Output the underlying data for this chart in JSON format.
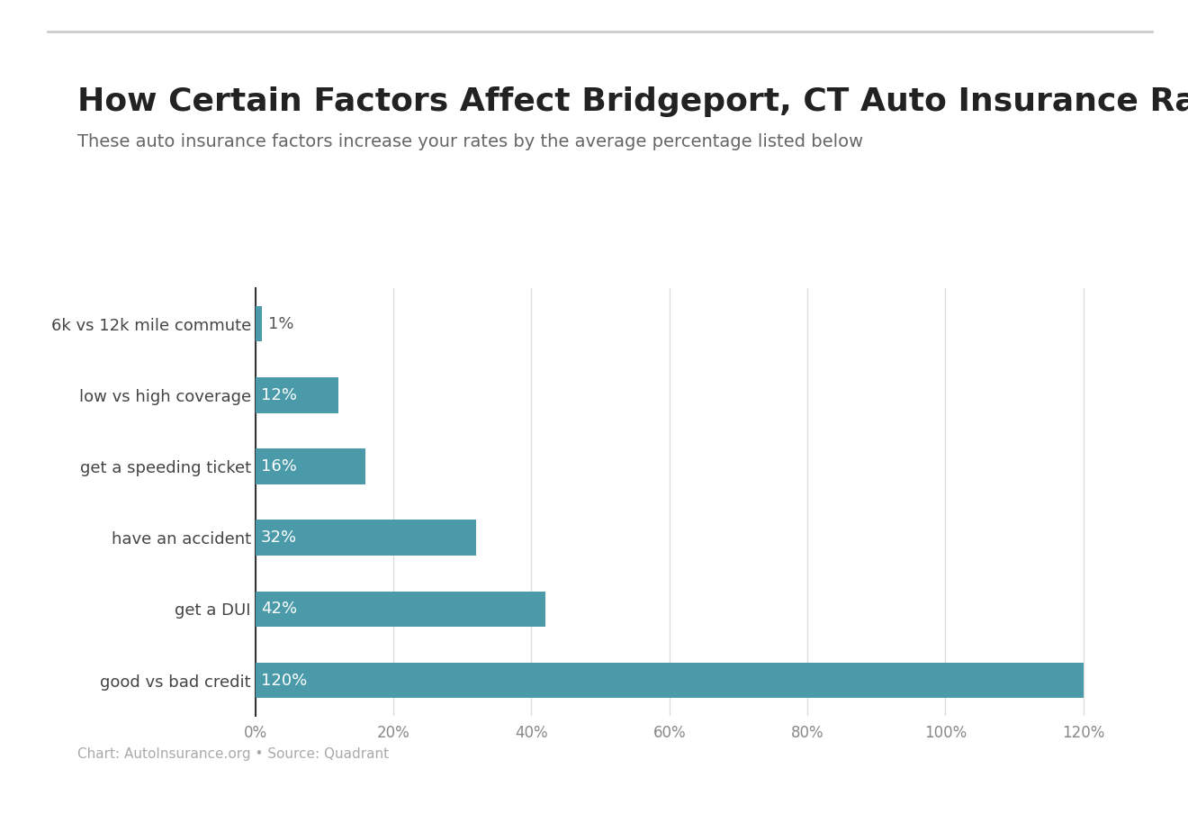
{
  "title": "How Certain Factors Affect Bridgeport, CT Auto Insurance Rates",
  "subtitle": "These auto insurance factors increase your rates by the average percentage listed below",
  "categories": [
    "good vs bad credit",
    "get a DUI",
    "have an accident",
    "get a speeding ticket",
    "low vs high coverage",
    "6k vs 12k mile commute"
  ],
  "values": [
    120,
    42,
    32,
    16,
    12,
    1
  ],
  "bar_color": "#4a9aaa",
  "label_color_inside": "#ffffff",
  "label_color_outside": "#555555",
  "background_color": "#ffffff",
  "top_line_color": "#cccccc",
  "grid_color": "#dddddd",
  "footer_text": "Chart: AutoInsurance.org • Source: Quadrant",
  "footer_color": "#aaaaaa",
  "title_color": "#222222",
  "subtitle_color": "#666666",
  "title_fontsize": 26,
  "subtitle_fontsize": 14,
  "label_fontsize": 13,
  "tick_fontsize": 12,
  "footer_fontsize": 11,
  "ytick_fontsize": 13,
  "xlim": [
    0,
    130
  ],
  "bar_height": 0.5
}
